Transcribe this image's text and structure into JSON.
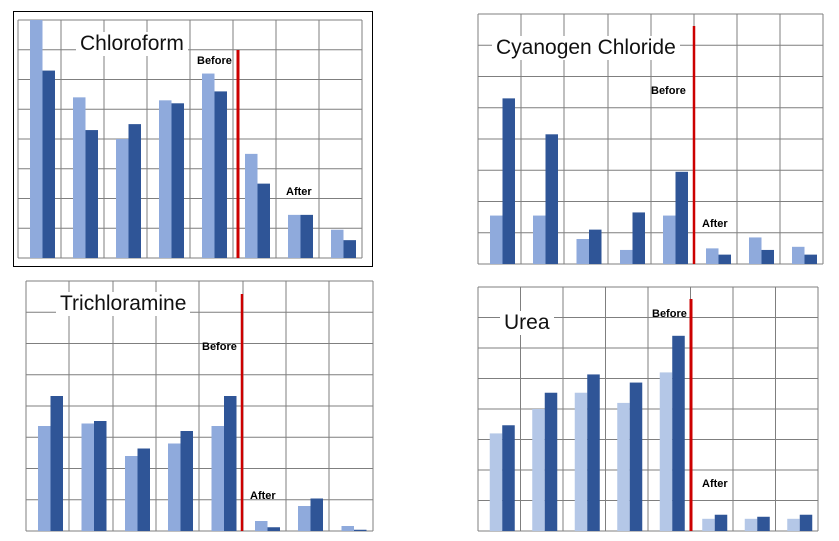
{
  "chart_data": [
    {
      "type": "bar",
      "title": "Chloroform",
      "categories": [
        "",
        "",
        "",
        "",
        "",
        "",
        "",
        ""
      ],
      "series": [
        {
          "values": [
            8.0,
            5.4,
            4.0,
            5.3,
            6.2,
            3.5,
            1.45,
            0.95
          ]
        },
        {
          "values": [
            6.3,
            4.3,
            4.5,
            5.2,
            5.6,
            2.5,
            1.45,
            0.6
          ]
        }
      ],
      "ylim": [
        0,
        8
      ],
      "grid": true,
      "marker_labels": {
        "before": "Before",
        "after": "After"
      },
      "colors": {
        "light": "#8faadc",
        "dark": "#2f5597",
        "marker": "#cc0000"
      }
    },
    {
      "type": "bar",
      "title": "Cyanogen Chloride",
      "categories": [
        "",
        "",
        "",
        "",
        "",
        "",
        "",
        ""
      ],
      "series": [
        {
          "values": [
            1.55,
            1.55,
            0.8,
            0.45,
            1.55,
            0.5,
            0.85,
            0.55
          ]
        },
        {
          "values": [
            5.3,
            4.15,
            1.1,
            1.65,
            2.95,
            0.3,
            0.45,
            0.3
          ]
        }
      ],
      "ylim": [
        0,
        8
      ],
      "grid": true,
      "marker_labels": {
        "before": "Before",
        "after": "After"
      },
      "colors": {
        "light": "#8faadc",
        "dark": "#2f5597",
        "marker": "#cc0000"
      }
    },
    {
      "type": "bar",
      "title": "Trichloramine",
      "categories": [
        "",
        "",
        "",
        "",
        "",
        "",
        "",
        ""
      ],
      "series": [
        {
          "values": [
            4.2,
            4.3,
            3.0,
            3.5,
            4.2,
            0.4,
            1.0,
            0.2
          ]
        },
        {
          "values": [
            5.4,
            4.4,
            3.3,
            4.0,
            5.4,
            0.15,
            1.3,
            0.05
          ]
        }
      ],
      "ylim": [
        0,
        10
      ],
      "grid": true,
      "marker_labels": {
        "before": "Before",
        "after": "After"
      },
      "colors": {
        "light": "#8faadc",
        "dark": "#2f5597",
        "marker": "#cc0000"
      }
    },
    {
      "type": "bar",
      "title": "Urea",
      "categories": [
        "",
        "",
        "",
        "",
        "",
        "",
        "",
        ""
      ],
      "series": [
        {
          "values": [
            2.4,
            3.0,
            3.4,
            3.15,
            3.9,
            0.3,
            0.3,
            0.3
          ]
        },
        {
          "values": [
            2.6,
            3.4,
            3.85,
            3.65,
            4.8,
            0.4,
            0.35,
            0.4
          ]
        }
      ],
      "ylim": [
        0,
        6
      ],
      "grid": true,
      "marker_labels": {
        "before": "Before",
        "after": "After"
      },
      "colors": {
        "light": "#b4c7e7",
        "dark": "#2f5597",
        "marker": "#cc0000"
      }
    }
  ]
}
